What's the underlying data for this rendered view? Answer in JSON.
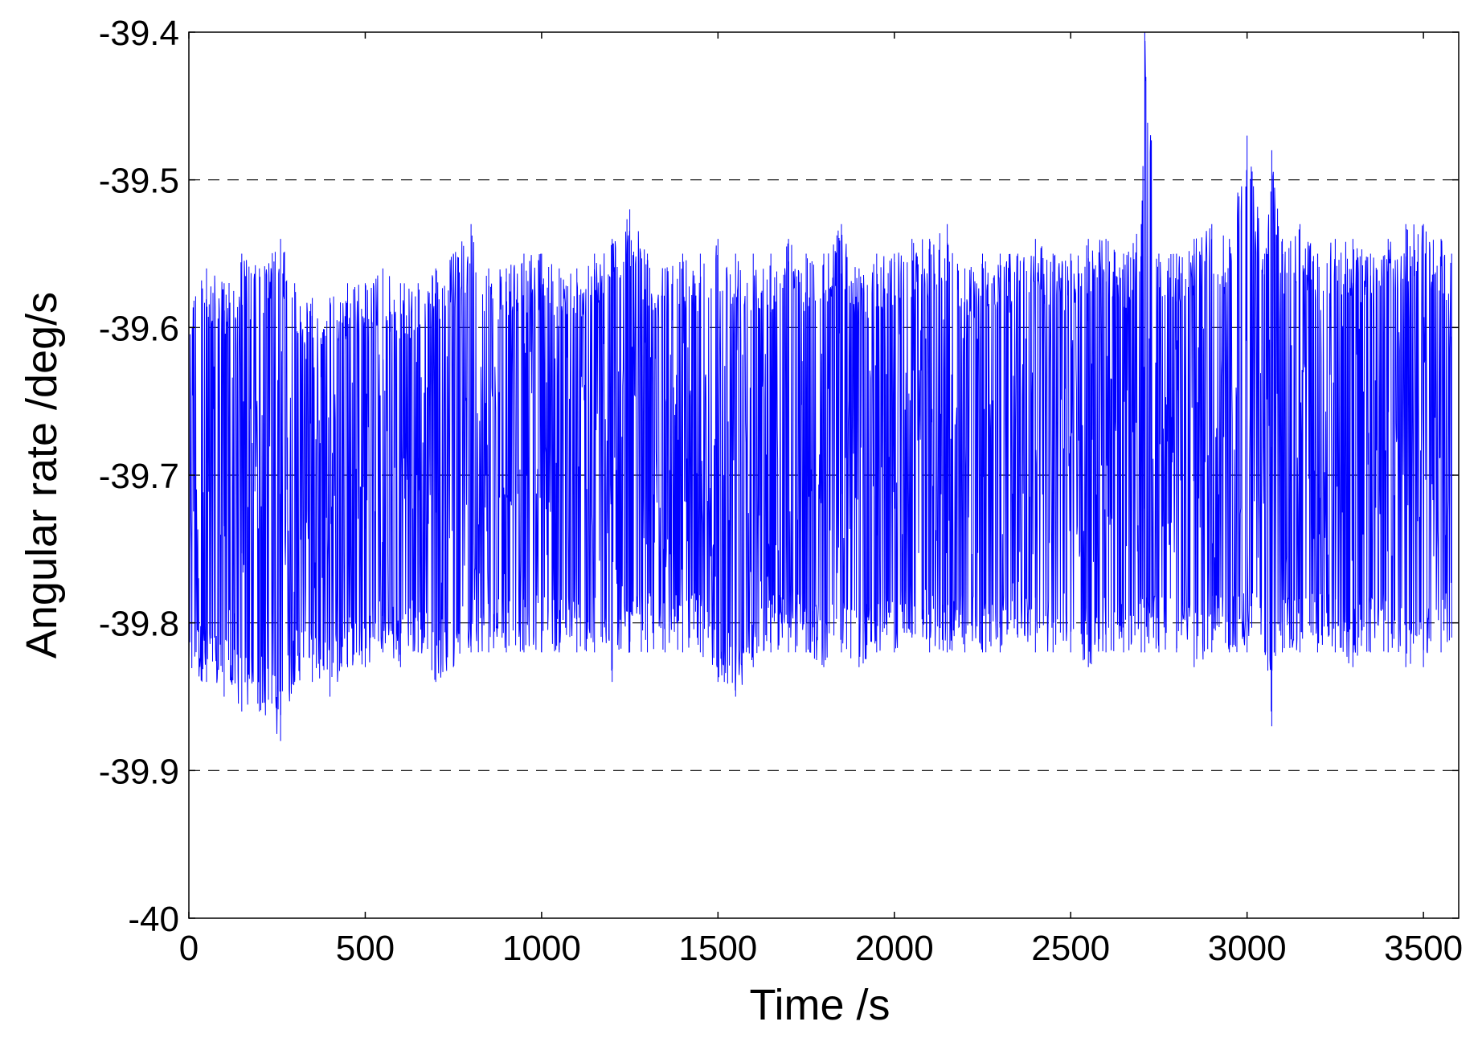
{
  "chart_data": {
    "type": "line",
    "title": "",
    "xlabel": "Time /s",
    "ylabel": "Angular rate /deg/s",
    "xlim": [
      0,
      3600
    ],
    "ylim": [
      -40,
      -39.4
    ],
    "xticks": [
      0,
      500,
      1000,
      1500,
      2000,
      2500,
      3000,
      3500
    ],
    "xtick_labels": [
      "0",
      "500",
      "1000",
      "1500",
      "2000",
      "2500",
      "3000",
      "3500"
    ],
    "yticks": [
      -40,
      -39.9,
      -39.8,
      -39.7,
      -39.6,
      -39.5,
      -39.4
    ],
    "ytick_labels": [
      "-40",
      "-39.9",
      "-39.8",
      "-39.7",
      "-39.6",
      "-39.5",
      "-39.4"
    ],
    "grid": true,
    "grid_style": "dashed",
    "series": [
      {
        "color": "#0000ff",
        "x": [
          0,
          50,
          100,
          150,
          200,
          260,
          300,
          350,
          400,
          450,
          500,
          550,
          600,
          650,
          700,
          750,
          800,
          850,
          900,
          950,
          1000,
          1050,
          1100,
          1150,
          1200,
          1250,
          1300,
          1350,
          1400,
          1450,
          1500,
          1550,
          1600,
          1650,
          1700,
          1750,
          1800,
          1850,
          1900,
          1950,
          2000,
          2050,
          2100,
          2150,
          2200,
          2250,
          2300,
          2350,
          2400,
          2450,
          2500,
          2550,
          2600,
          2650,
          2700,
          2710,
          2750,
          2800,
          2850,
          2900,
          2950,
          3000,
          3050,
          3070,
          3100,
          3150,
          3200,
          3250,
          3300,
          3350,
          3400,
          3450,
          3500,
          3550,
          3580
        ],
        "upper": [
          -39.57,
          -39.56,
          -39.57,
          -39.55,
          -39.56,
          -39.54,
          -39.57,
          -39.58,
          -39.58,
          -39.57,
          -39.57,
          -39.56,
          -39.57,
          -39.57,
          -39.56,
          -39.55,
          -39.53,
          -39.56,
          -39.56,
          -39.55,
          -39.55,
          -39.56,
          -39.56,
          -39.55,
          -39.54,
          -39.52,
          -39.55,
          -39.56,
          -39.55,
          -39.55,
          -39.54,
          -39.55,
          -39.55,
          -39.55,
          -39.54,
          -39.55,
          -39.55,
          -39.53,
          -39.56,
          -39.55,
          -39.55,
          -39.54,
          -39.54,
          -39.53,
          -39.56,
          -39.55,
          -39.55,
          -39.55,
          -39.54,
          -39.55,
          -39.55,
          -39.54,
          -39.54,
          -39.55,
          -39.53,
          -39.4,
          -39.55,
          -39.55,
          -39.54,
          -39.53,
          -39.54,
          -39.47,
          -39.55,
          -39.48,
          -39.54,
          -39.53,
          -39.55,
          -39.54,
          -39.54,
          -39.55,
          -39.54,
          -39.53,
          -39.53,
          -39.54,
          -39.55
        ],
        "lower": [
          -39.84,
          -39.84,
          -39.85,
          -39.86,
          -39.86,
          -39.88,
          -39.84,
          -39.84,
          -39.85,
          -39.83,
          -39.83,
          -39.82,
          -39.83,
          -39.82,
          -39.84,
          -39.83,
          -39.82,
          -39.82,
          -39.82,
          -39.82,
          -39.82,
          -39.82,
          -39.82,
          -39.82,
          -39.84,
          -39.82,
          -39.82,
          -39.82,
          -39.82,
          -39.82,
          -39.84,
          -39.85,
          -39.83,
          -39.82,
          -39.82,
          -39.82,
          -39.83,
          -39.82,
          -39.83,
          -39.82,
          -39.82,
          -39.81,
          -39.82,
          -39.82,
          -39.82,
          -39.82,
          -39.82,
          -39.81,
          -39.82,
          -39.82,
          -39.82,
          -39.83,
          -39.82,
          -39.82,
          -39.82,
          -39.82,
          -39.82,
          -39.82,
          -39.83,
          -39.82,
          -39.82,
          -39.82,
          -39.82,
          -39.87,
          -39.82,
          -39.82,
          -39.82,
          -39.82,
          -39.83,
          -39.82,
          -39.82,
          -39.83,
          -39.83,
          -39.82,
          -39.81
        ],
        "mean": [
          -39.7,
          -39.71,
          -39.71,
          -39.71,
          -39.71,
          -39.71,
          -39.7,
          -39.7,
          -39.7,
          -39.7,
          -39.69,
          -39.69,
          -39.69,
          -39.69,
          -39.69,
          -39.69,
          -39.69,
          -39.69,
          -39.69,
          -39.69,
          -39.69,
          -39.69,
          -39.69,
          -39.69,
          -39.69,
          -39.69,
          -39.69,
          -39.69,
          -39.69,
          -39.69,
          -39.69,
          -39.69,
          -39.69,
          -39.69,
          -39.69,
          -39.69,
          -39.69,
          -39.69,
          -39.69,
          -39.69,
          -39.68,
          -39.68,
          -39.68,
          -39.68,
          -39.68,
          -39.68,
          -39.68,
          -39.68,
          -39.68,
          -39.68,
          -39.68,
          -39.68,
          -39.68,
          -39.68,
          -39.68,
          -39.68,
          -39.68,
          -39.68,
          -39.68,
          -39.68,
          -39.68,
          -39.68,
          -39.68,
          -39.68,
          -39.68,
          -39.68,
          -39.68,
          -39.68,
          -39.68,
          -39.68,
          -39.68,
          -39.68,
          -39.68,
          -39.68,
          -39.68
        ]
      }
    ]
  }
}
